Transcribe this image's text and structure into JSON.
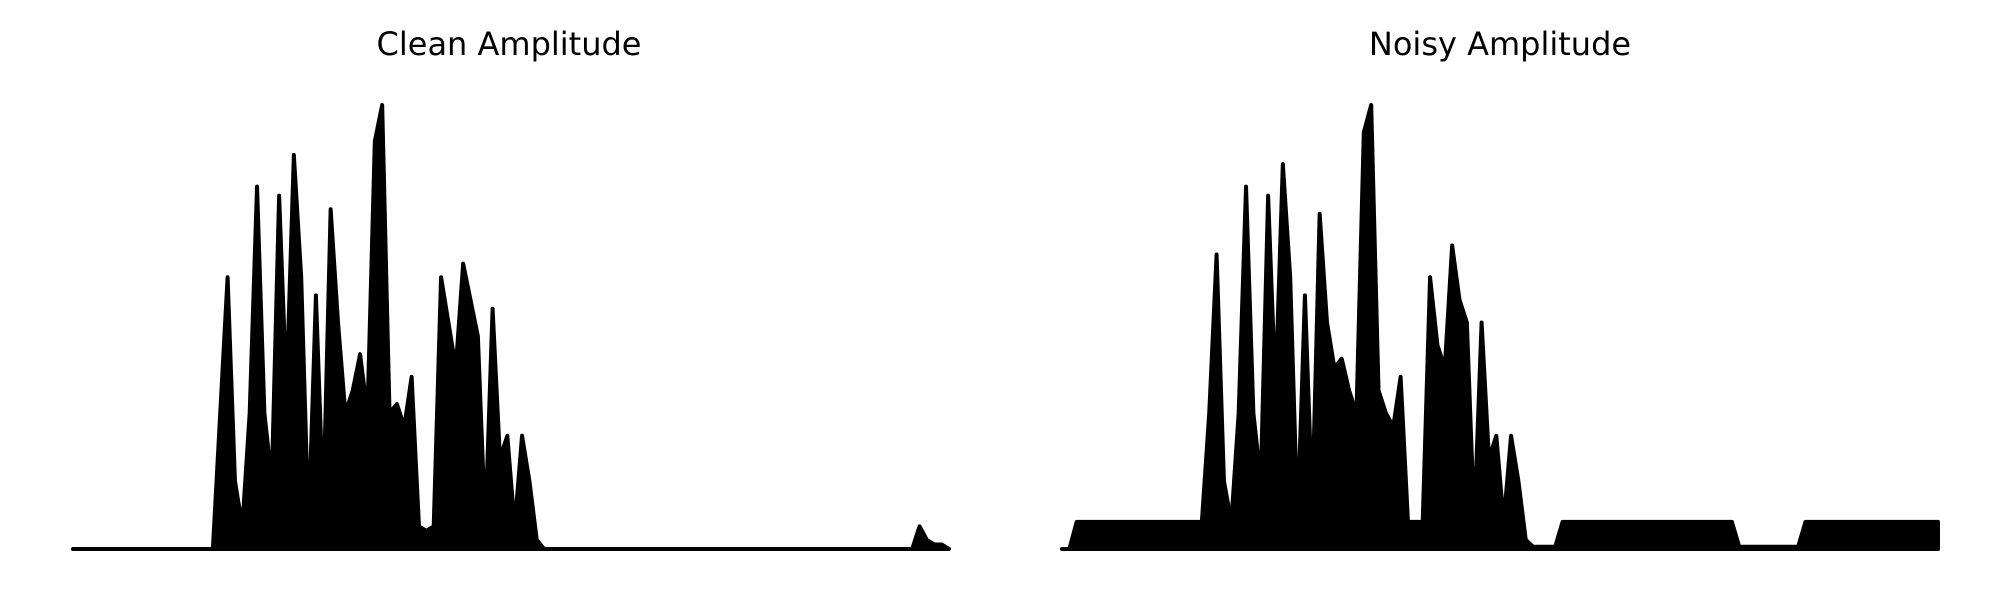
{
  "chart_data": [
    {
      "type": "area",
      "title": "Clean Amplitude",
      "color": "#000000",
      "ylim": [
        0,
        1
      ],
      "values": [
        0,
        0,
        0,
        0,
        0,
        0,
        0,
        0,
        0,
        0,
        0,
        0,
        0,
        0,
        0,
        0,
        0,
        0,
        0,
        0,
        0.3,
        0.6,
        0.15,
        0.05,
        0.3,
        0.8,
        0.3,
        0.15,
        0.78,
        0.35,
        0.87,
        0.6,
        0.05,
        0.56,
        0.1,
        0.75,
        0.5,
        0.3,
        0.35,
        0.43,
        0.3,
        0.9,
        0.98,
        0.3,
        0.32,
        0.27,
        0.38,
        0.05,
        0.04,
        0.05,
        0.6,
        0.5,
        0.4,
        0.63,
        0.55,
        0.47,
        0.05,
        0.53,
        0.2,
        0.25,
        0.05,
        0.25,
        0.15,
        0.02,
        0,
        0,
        0,
        0,
        0,
        0,
        0,
        0,
        0,
        0,
        0,
        0,
        0,
        0,
        0,
        0,
        0,
        0,
        0,
        0,
        0,
        0,
        0,
        0,
        0,
        0,
        0,
        0,
        0,
        0,
        0,
        0,
        0,
        0,
        0,
        0,
        0,
        0,
        0,
        0,
        0,
        0,
        0,
        0,
        0,
        0,
        0,
        0,
        0,
        0,
        0,
        0.05,
        0.02,
        0.01,
        0.01,
        0
      ]
    },
    {
      "type": "area",
      "title": "Noisy Amplitude",
      "color": "#000000",
      "ylim": [
        0,
        1
      ],
      "values": [
        0,
        0,
        0.06,
        0.06,
        0.06,
        0.06,
        0.06,
        0.06,
        0.06,
        0.06,
        0.06,
        0.06,
        0.06,
        0.06,
        0.06,
        0.06,
        0.06,
        0.06,
        0.06,
        0.06,
        0.3,
        0.65,
        0.15,
        0.06,
        0.3,
        0.8,
        0.3,
        0.15,
        0.78,
        0.35,
        0.85,
        0.6,
        0.06,
        0.56,
        0.1,
        0.74,
        0.5,
        0.4,
        0.42,
        0.35,
        0.3,
        0.92,
        0.98,
        0.35,
        0.3,
        0.27,
        0.38,
        0.06,
        0.06,
        0.06,
        0.6,
        0.45,
        0.4,
        0.67,
        0.55,
        0.5,
        0.06,
        0.5,
        0.2,
        0.25,
        0.06,
        0.25,
        0.15,
        0.02,
        0.005,
        0.005,
        0.005,
        0.005,
        0.06,
        0.06,
        0.06,
        0.06,
        0.06,
        0.06,
        0.06,
        0.06,
        0.06,
        0.06,
        0.06,
        0.06,
        0.06,
        0.06,
        0.06,
        0.06,
        0.06,
        0.06,
        0.06,
        0.06,
        0.06,
        0.06,
        0.06,
        0.06,
        0.005,
        0.005,
        0.005,
        0.005,
        0.005,
        0.005,
        0.005,
        0.005,
        0.005,
        0.06,
        0.06,
        0.06,
        0.06,
        0.06,
        0.06,
        0.06,
        0.06,
        0.06,
        0.06,
        0.06,
        0.06,
        0.06,
        0.06,
        0.06,
        0.06,
        0.06,
        0.06,
        0.06
      ]
    }
  ]
}
